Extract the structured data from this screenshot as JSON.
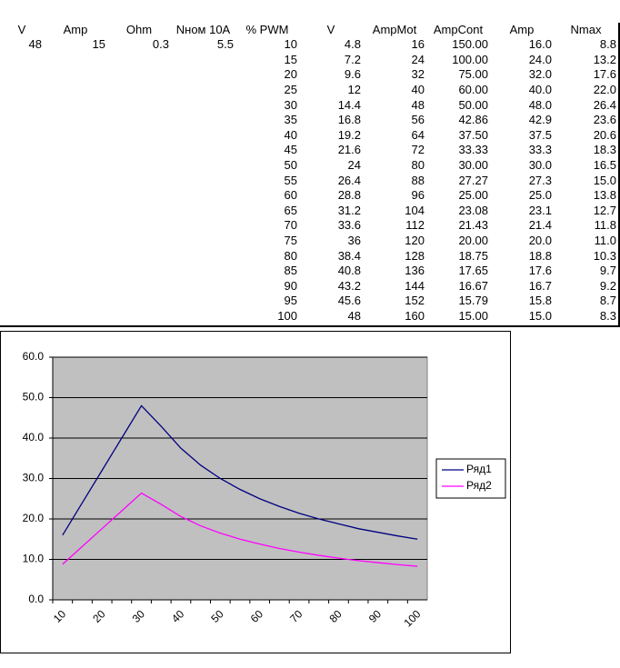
{
  "table": {
    "header": [
      "V",
      "Amp",
      "Ohm",
      "Nном 10A",
      "% PWM",
      "V",
      "AmpMot",
      "AmpCont",
      "Amp",
      "Nmax"
    ],
    "rows": [
      [
        "48",
        "15",
        "0.3",
        "5.5",
        "10",
        "4.8",
        "16",
        "150.00",
        "16.0",
        "8.8"
      ],
      [
        null,
        null,
        null,
        null,
        "15",
        "7.2",
        "24",
        "100.00",
        "24.0",
        "13.2"
      ],
      [
        null,
        null,
        null,
        null,
        "20",
        "9.6",
        "32",
        "75.00",
        "32.0",
        "17.6"
      ],
      [
        null,
        null,
        null,
        null,
        "25",
        "12",
        "40",
        "60.00",
        "40.0",
        "22.0"
      ],
      [
        null,
        null,
        null,
        null,
        "30",
        "14.4",
        "48",
        "50.00",
        "48.0",
        "26.4"
      ],
      [
        null,
        null,
        null,
        null,
        "35",
        "16.8",
        "56",
        "42.86",
        "42.9",
        "23.6"
      ],
      [
        null,
        null,
        null,
        null,
        "40",
        "19.2",
        "64",
        "37.50",
        "37.5",
        "20.6"
      ],
      [
        null,
        null,
        null,
        null,
        "45",
        "21.6",
        "72",
        "33.33",
        "33.3",
        "18.3"
      ],
      [
        null,
        null,
        null,
        null,
        "50",
        "24",
        "80",
        "30.00",
        "30.0",
        "16.5"
      ],
      [
        null,
        null,
        null,
        null,
        "55",
        "26.4",
        "88",
        "27.27",
        "27.3",
        "15.0"
      ],
      [
        null,
        null,
        null,
        null,
        "60",
        "28.8",
        "96",
        "25.00",
        "25.0",
        "13.8"
      ],
      [
        null,
        null,
        null,
        null,
        "65",
        "31.2",
        "104",
        "23.08",
        "23.1",
        "12.7"
      ],
      [
        null,
        null,
        null,
        null,
        "70",
        "33.6",
        "112",
        "21.43",
        "21.4",
        "11.8"
      ],
      [
        null,
        null,
        null,
        null,
        "75",
        "36",
        "120",
        "20.00",
        "20.0",
        "11.0"
      ],
      [
        null,
        null,
        null,
        null,
        "80",
        "38.4",
        "128",
        "18.75",
        "18.8",
        "10.3"
      ],
      [
        null,
        null,
        null,
        null,
        "85",
        "40.8",
        "136",
        "17.65",
        "17.6",
        "9.7"
      ],
      [
        null,
        null,
        null,
        null,
        "90",
        "43.2",
        "144",
        "16.67",
        "16.7",
        "9.2"
      ],
      [
        null,
        null,
        null,
        null,
        "95",
        "45.6",
        "152",
        "15.79",
        "15.8",
        "8.7"
      ],
      [
        null,
        null,
        null,
        null,
        "100",
        "48",
        "160",
        "15.00",
        "15.0",
        "8.3"
      ]
    ]
  },
  "chart_data": {
    "type": "line",
    "categories": [
      10,
      null,
      20,
      null,
      30,
      null,
      40,
      null,
      50,
      null,
      60,
      null,
      70,
      null,
      80,
      null,
      90,
      null,
      100
    ],
    "series": [
      {
        "name": "Ряд1",
        "color": "#000080",
        "values": [
          16,
          24,
          32,
          40,
          48,
          42.9,
          37.5,
          33.3,
          30,
          27.3,
          25,
          23.1,
          21.4,
          20,
          18.8,
          17.6,
          16.7,
          15.8,
          15
        ]
      },
      {
        "name": "Ряд2",
        "color": "#ff00ff",
        "values": [
          8.8,
          13.2,
          17.6,
          22,
          26.4,
          23.6,
          20.6,
          18.3,
          16.5,
          15,
          13.8,
          12.7,
          11.8,
          11,
          10.3,
          9.7,
          9.2,
          8.7,
          8.3
        ]
      }
    ],
    "ylim": [
      0,
      60
    ],
    "yticks": [
      {
        "value": 0,
        "label": "0.0"
      },
      {
        "value": 10,
        "label": "10.0"
      },
      {
        "value": 20,
        "label": "20.0"
      },
      {
        "value": 30,
        "label": "30.0"
      },
      {
        "value": 40,
        "label": "40.0"
      },
      {
        "value": 50,
        "label": "50.0"
      },
      {
        "value": 60,
        "label": "60.0"
      }
    ],
    "grid": true,
    "legend": "right",
    "plot_background": "#c0c0c0"
  }
}
